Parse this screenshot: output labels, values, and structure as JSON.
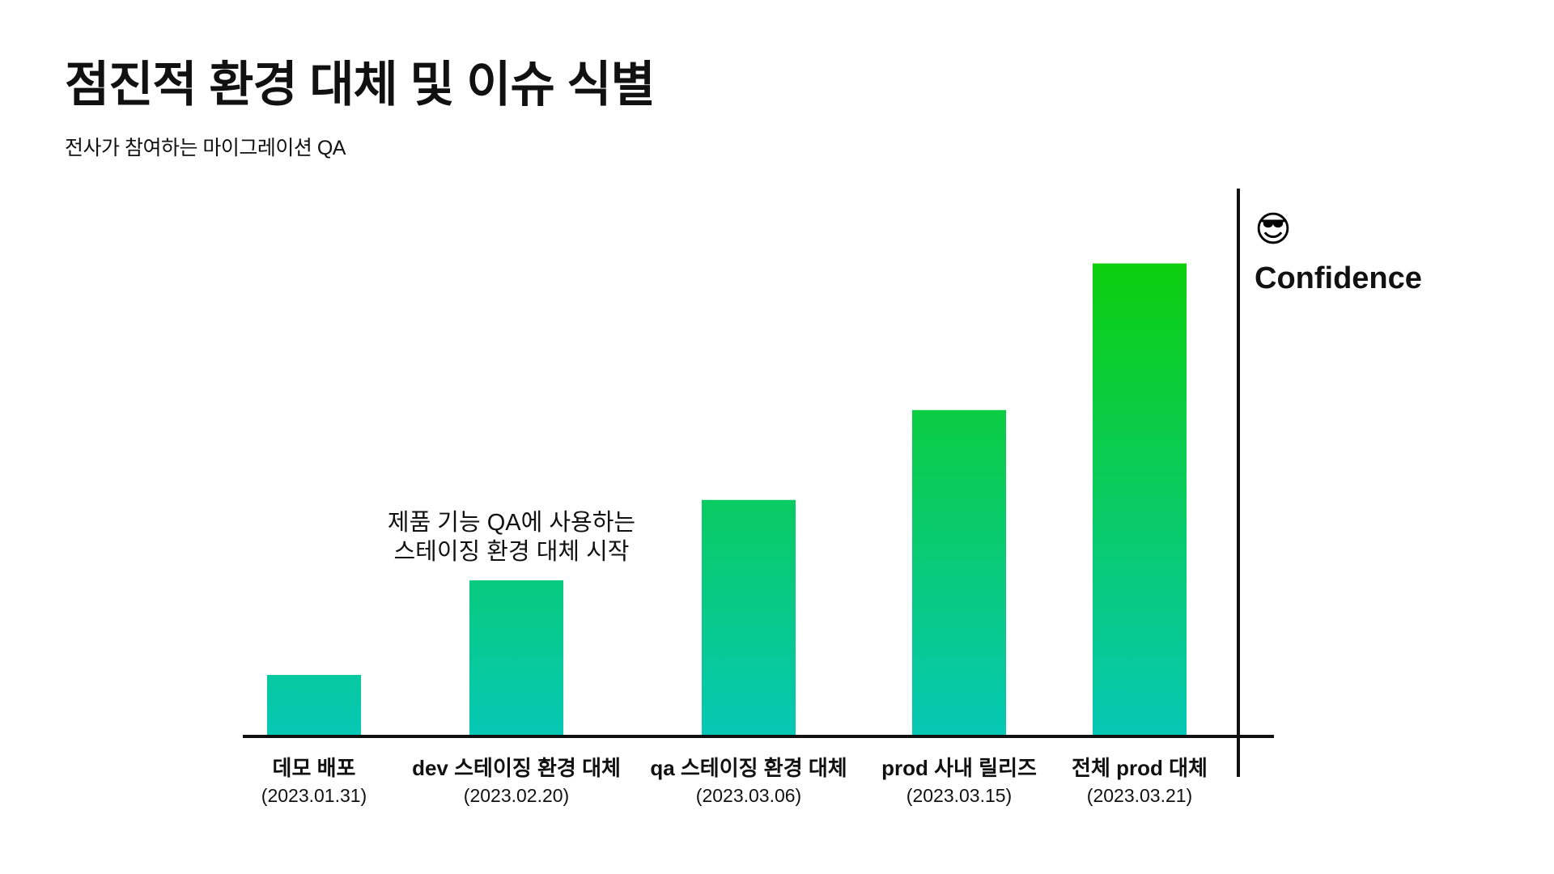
{
  "title": "점진적 환경 대체 및 이슈 식별",
  "subtitle": "전사가 참여하는 마이그레이션 QA",
  "chart_data": {
    "type": "bar",
    "categories": [
      "데모 배포",
      "dev 스테이징 환경 대체",
      "qa 스테이징 환경 대체",
      "prod 사내 릴리즈",
      "전체 prod 대체"
    ],
    "dates": [
      "(2023.01.31)",
      "(2023.02.20)",
      "(2023.03.06)",
      "(2023.03.15)",
      "(2023.03.21)"
    ],
    "values": [
      13,
      33,
      50,
      69,
      100
    ],
    "ylim": [
      0,
      116
    ],
    "ylabel": "Confidence",
    "ylabel_emoji": "😎",
    "grid": false,
    "annotation": {
      "category_index": 1,
      "lines": [
        "제품 기능 QA에 사용하는",
        "스테이징 환경 대체 시작"
      ]
    },
    "colors": {
      "bar_top": "#0ccf0c",
      "bar_bottom": "#06c8b5",
      "axis": "#111111"
    }
  }
}
